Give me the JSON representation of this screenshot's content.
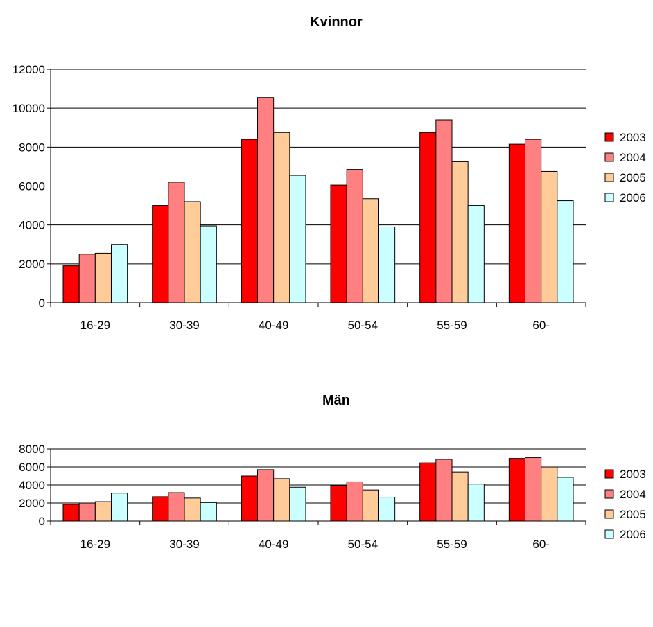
{
  "colors": {
    "series": [
      "#FF0000",
      "#FF8080",
      "#FFCC99",
      "#CCFFFF"
    ]
  },
  "chart_data": [
    {
      "type": "bar",
      "title": "Kvinnor",
      "categories": [
        "16-29",
        "30-39",
        "40-49",
        "50-54",
        "55-59",
        "60-"
      ],
      "ylim": [
        0,
        12000
      ],
      "yticks": [
        "0",
        "2000",
        "4000",
        "6000",
        "8000",
        "10000",
        "12000"
      ],
      "grid": true,
      "legend_position": "right",
      "series": [
        {
          "name": "2003",
          "values": [
            1900,
            5000,
            8400,
            6050,
            8750,
            8150
          ]
        },
        {
          "name": "2004",
          "values": [
            2500,
            6200,
            10550,
            6850,
            9400,
            8400
          ]
        },
        {
          "name": "2005",
          "values": [
            2550,
            5200,
            8750,
            5350,
            7250,
            6750
          ]
        },
        {
          "name": "2006",
          "values": [
            3000,
            3950,
            6550,
            3900,
            5000,
            5250
          ]
        }
      ]
    },
    {
      "type": "bar",
      "title": "Män",
      "categories": [
        "16-29",
        "30-39",
        "40-49",
        "50-54",
        "55-59",
        "60-"
      ],
      "ylim": [
        0,
        8000
      ],
      "yticks": [
        "0",
        "2000",
        "4000",
        "6000",
        "8000"
      ],
      "grid": true,
      "legend_position": "right",
      "series": [
        {
          "name": "2003",
          "values": [
            1850,
            2700,
            5000,
            3950,
            6450,
            6950
          ]
        },
        {
          "name": "2004",
          "values": [
            2000,
            3150,
            5700,
            4350,
            6850,
            7050
          ]
        },
        {
          "name": "2005",
          "values": [
            2150,
            2550,
            4700,
            3450,
            5450,
            6000
          ]
        },
        {
          "name": "2006",
          "values": [
            3100,
            2050,
            3750,
            2650,
            4100,
            4850
          ]
        }
      ]
    }
  ]
}
